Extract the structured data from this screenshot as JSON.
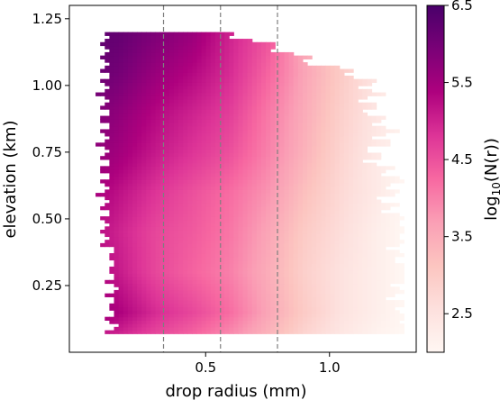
{
  "chart_data": {
    "type": "heatmap",
    "xlabel": "drop radius (mm)",
    "ylabel": "elevation (km)",
    "xlim": [
      -0.05,
      1.35
    ],
    "ylim": [
      0.0,
      1.3
    ],
    "x_ticks": [
      0.5,
      1.0
    ],
    "x_tick_labels": [
      "0.5",
      "1.0"
    ],
    "y_ticks": [
      0.25,
      0.5,
      0.75,
      1.0,
      1.25
    ],
    "y_tick_labels": [
      "0.25",
      "0.50",
      "0.75",
      "1.00",
      "1.25"
    ],
    "vertical_dashed_lines_x": [
      0.33,
      0.56,
      0.79
    ],
    "grid": false,
    "colormap": "RdPu",
    "colorbar": {
      "label": "log10(N(r))",
      "label_base": "log",
      "label_sub": "10",
      "label_rest": "(N(r))",
      "range": [
        2.0,
        6.5
      ],
      "ticks": [
        2.5,
        3.5,
        4.5,
        5.5,
        6.5
      ],
      "tick_labels": [
        "2.5",
        "3.5",
        "4.5",
        "5.5",
        "6.5"
      ]
    },
    "field": {
      "x_range": [
        0.0,
        1.3
      ],
      "y_range": [
        0.07,
        1.2
      ],
      "elevation_rows": [
        1.2,
        1.05,
        0.9,
        0.75,
        0.6,
        0.45,
        0.3,
        0.15,
        0.07
      ],
      "max_radius_at_row": [
        0.55,
        1.1,
        1.2,
        1.2,
        1.25,
        1.3,
        1.3,
        1.3,
        1.3
      ],
      "radius_cols": [
        0.0,
        0.15,
        0.3,
        0.45,
        0.6,
        0.75,
        0.9,
        1.05,
        1.2,
        1.3
      ],
      "log10_N": [
        [
          6.3,
          6.2,
          5.9,
          5.6,
          5.0,
          4.5,
          3.5,
          2.8,
          2.2,
          2.0
        ],
        [
          6.2,
          6.0,
          5.6,
          5.3,
          4.9,
          4.3,
          3.6,
          3.0,
          2.4,
          2.1
        ],
        [
          6.0,
          5.7,
          5.3,
          5.0,
          4.7,
          4.1,
          3.5,
          2.9,
          2.4,
          2.1
        ],
        [
          5.8,
          5.5,
          5.1,
          4.8,
          4.5,
          4.0,
          3.4,
          2.8,
          2.3,
          2.1
        ],
        [
          5.6,
          5.2,
          4.8,
          4.5,
          4.2,
          3.8,
          3.2,
          2.7,
          2.3,
          2.0
        ],
        [
          5.4,
          5.0,
          4.6,
          4.4,
          4.1,
          3.6,
          3.0,
          2.6,
          2.2,
          2.0
        ],
        [
          5.5,
          5.1,
          4.6,
          4.3,
          4.0,
          3.5,
          2.9,
          2.5,
          2.2,
          2.0
        ],
        [
          5.8,
          5.4,
          4.9,
          4.6,
          4.2,
          3.6,
          3.0,
          2.5,
          2.2,
          2.0
        ],
        [
          5.3,
          5.0,
          4.6,
          4.3,
          3.9,
          3.4,
          2.8,
          2.4,
          2.1,
          2.0
        ]
      ]
    }
  }
}
